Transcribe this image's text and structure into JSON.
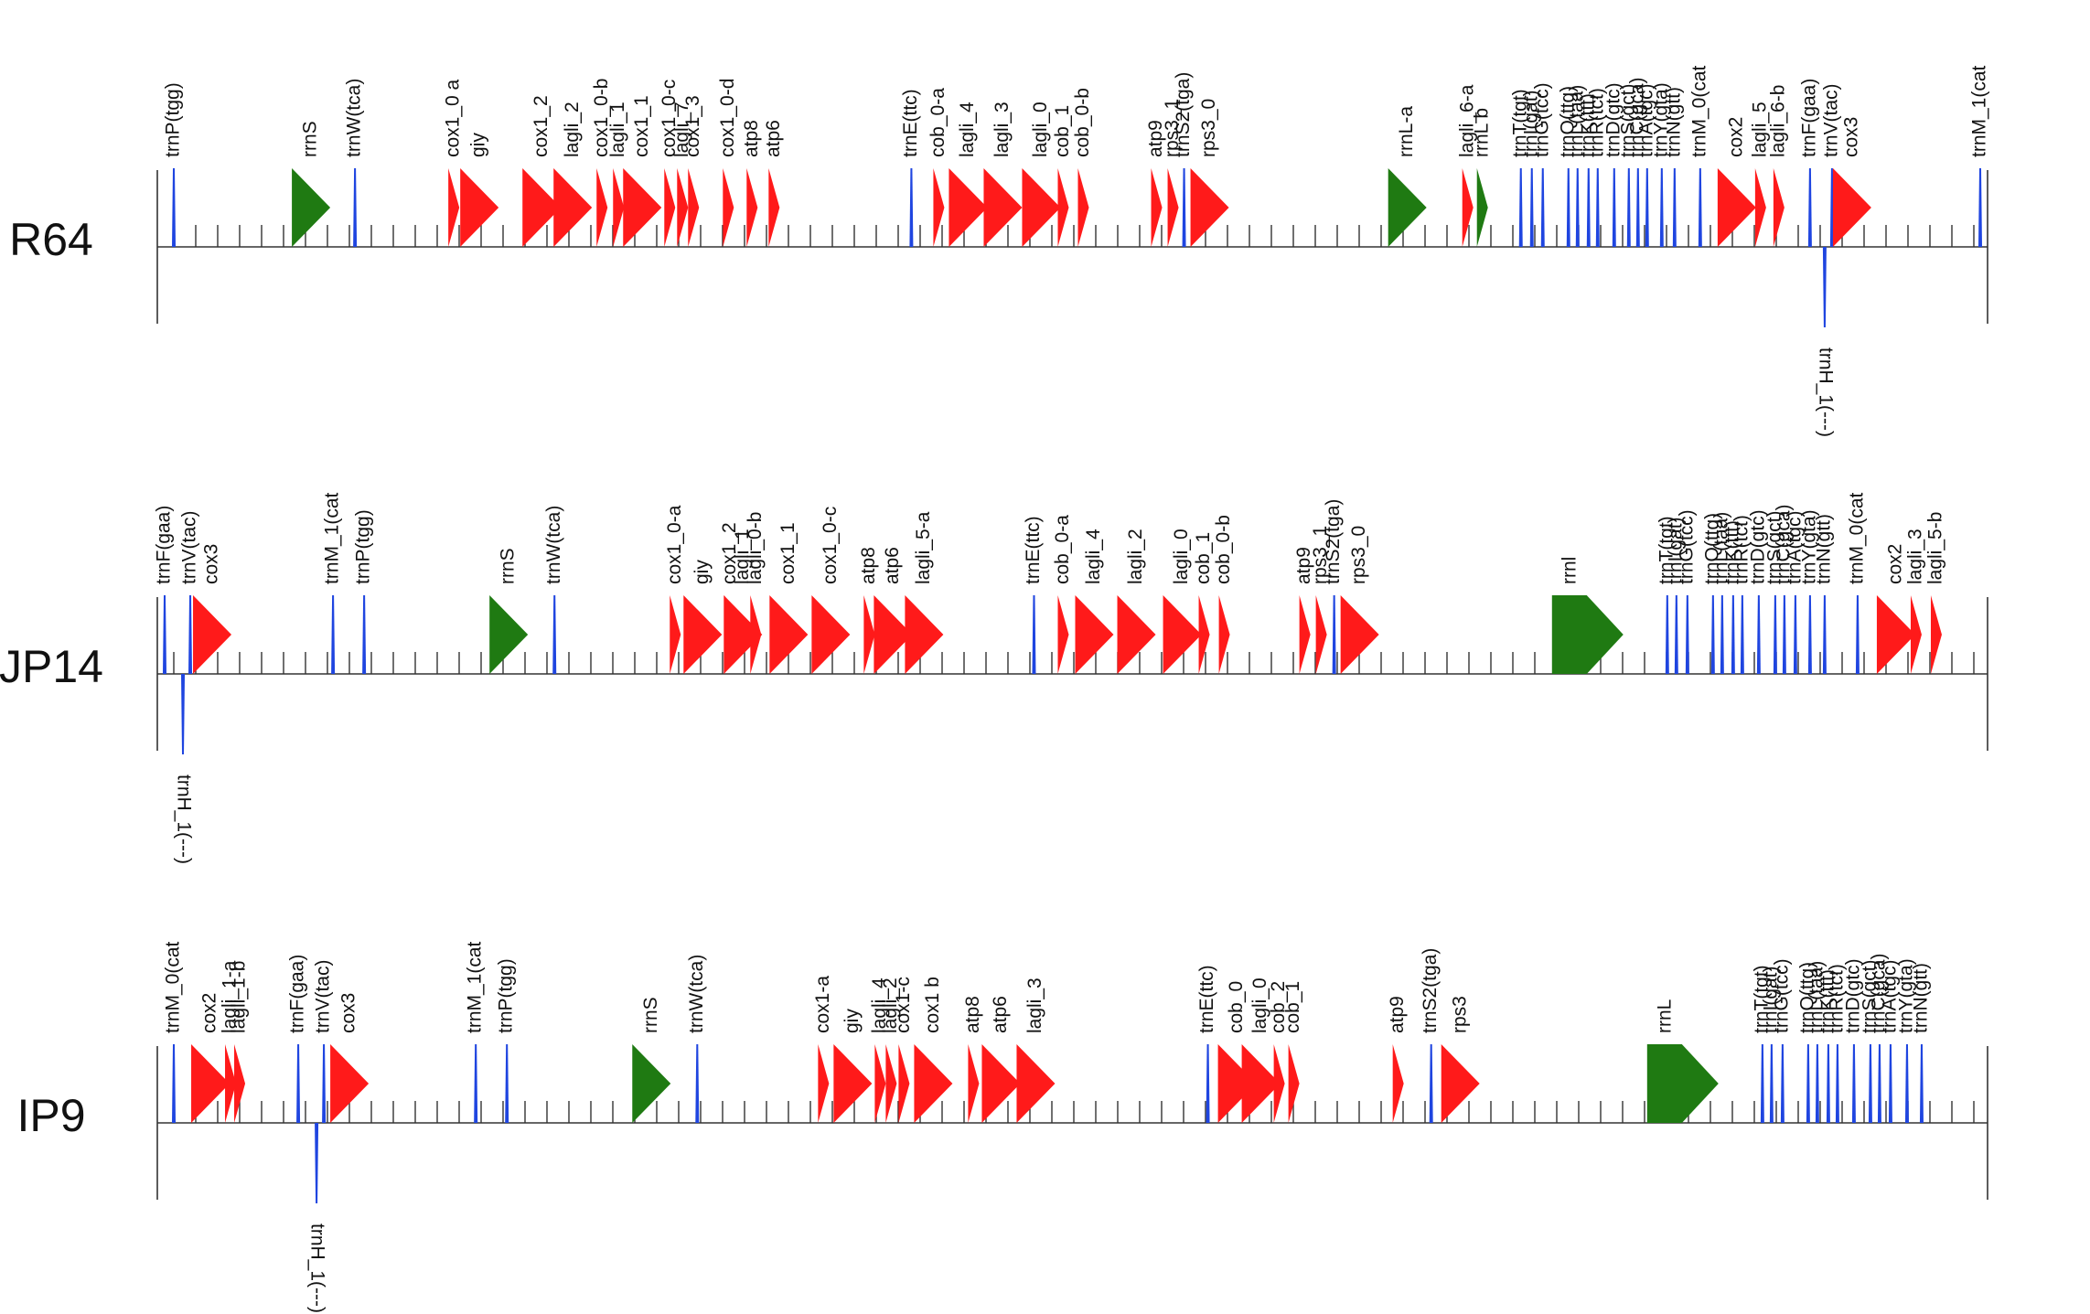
{
  "colors": {
    "protein": "#ff1a1a",
    "rrna": "#1f7a12",
    "trna": "#1f45e0"
  },
  "tracks": [
    {
      "name": "R64",
      "genes": [
        {
          "label": "trnP(tgg)",
          "x": 0.009,
          "type": "trna",
          "dir": "+"
        },
        {
          "label": "rrnS",
          "x": 0.084,
          "type": "rrna",
          "dir": "+"
        },
        {
          "label": "trnW(tca)",
          "x": 0.108,
          "type": "trna",
          "dir": "+"
        },
        {
          "label": "cox1_0 a",
          "x": 0.162,
          "type": "protein",
          "dir": "+",
          "size": "s"
        },
        {
          "label": "giy",
          "x": 0.176,
          "type": "protein",
          "dir": "+"
        },
        {
          "label": "cox1_2",
          "x": 0.21,
          "type": "protein",
          "dir": "+"
        },
        {
          "label": "lagli_2",
          "x": 0.227,
          "type": "protein",
          "dir": "+"
        },
        {
          "label": "cox1_0-b",
          "x": 0.243,
          "type": "protein",
          "dir": "+",
          "size": "s"
        },
        {
          "label": "lagli_1",
          "x": 0.252,
          "type": "protein",
          "dir": "+",
          "size": "s"
        },
        {
          "label": "cox1_1",
          "x": 0.265,
          "type": "protein",
          "dir": "+"
        },
        {
          "label": "cox1_0-c",
          "x": 0.28,
          "type": "protein",
          "dir": "+",
          "size": "s"
        },
        {
          "label": "lagli_7",
          "x": 0.287,
          "type": "protein",
          "dir": "+",
          "size": "s"
        },
        {
          "label": "cox1_3",
          "x": 0.293,
          "type": "protein",
          "dir": "+",
          "size": "s"
        },
        {
          "label": "cox1_0-d",
          "x": 0.312,
          "type": "protein",
          "dir": "+",
          "size": "s"
        },
        {
          "label": "atp8",
          "x": 0.325,
          "type": "protein",
          "dir": "+",
          "size": "s"
        },
        {
          "label": "atp6",
          "x": 0.337,
          "type": "protein",
          "dir": "+",
          "size": "s"
        },
        {
          "label": "trnE(ttc)",
          "x": 0.412,
          "type": "trna",
          "dir": "+"
        },
        {
          "label": "cob_0-a",
          "x": 0.427,
          "type": "protein",
          "dir": "+",
          "size": "s"
        },
        {
          "label": "lagli_4",
          "x": 0.443,
          "type": "protein",
          "dir": "+"
        },
        {
          "label": "lagli_3",
          "x": 0.462,
          "type": "protein",
          "dir": "+"
        },
        {
          "label": "lagli_0",
          "x": 0.483,
          "type": "protein",
          "dir": "+"
        },
        {
          "label": "cob_1",
          "x": 0.495,
          "type": "protein",
          "dir": "+",
          "size": "s"
        },
        {
          "label": "cob_0-b",
          "x": 0.506,
          "type": "protein",
          "dir": "+",
          "size": "s"
        },
        {
          "label": "atp9",
          "x": 0.546,
          "type": "protein",
          "dir": "+",
          "size": "s"
        },
        {
          "label": "rps3_1",
          "x": 0.555,
          "type": "protein",
          "dir": "+",
          "size": "s"
        },
        {
          "label": "trnS2(tga)",
          "x": 0.561,
          "type": "trna",
          "dir": "+"
        },
        {
          "label": "rps3_0",
          "x": 0.575,
          "type": "protein",
          "dir": "+"
        },
        {
          "label": "rrnL-a",
          "x": 0.683,
          "type": "rrna",
          "dir": "+"
        },
        {
          "label": "lagli_6-a",
          "x": 0.716,
          "type": "protein",
          "dir": "+",
          "size": "s"
        },
        {
          "label": "rrnL b",
          "x": 0.724,
          "type": "rrna",
          "dir": "+",
          "size": "s"
        },
        {
          "label": "trnT(tgt)",
          "x": 0.745,
          "type": "trna",
          "dir": "+"
        },
        {
          "label": "trnI(gat)",
          "x": 0.751,
          "type": "trna",
          "dir": "+"
        },
        {
          "label": "trnG(tcc)",
          "x": 0.757,
          "type": "trna",
          "dir": "+"
        },
        {
          "label": "trnQ(ttg)",
          "x": 0.771,
          "type": "trna",
          "dir": "+"
        },
        {
          "label": "trnL(taa)",
          "x": 0.776,
          "type": "trna",
          "dir": "+"
        },
        {
          "label": "trnK(ttt)",
          "x": 0.782,
          "type": "trna",
          "dir": "+"
        },
        {
          "label": "trnR(tct)",
          "x": 0.787,
          "type": "trna",
          "dir": "+"
        },
        {
          "label": "trnD(gtc)",
          "x": 0.796,
          "type": "trna",
          "dir": "+"
        },
        {
          "label": "trnS(gct)",
          "x": 0.804,
          "type": "trna",
          "dir": "+"
        },
        {
          "label": "trnC(gca)",
          "x": 0.809,
          "type": "trna",
          "dir": "+"
        },
        {
          "label": "trnA(tgc)",
          "x": 0.814,
          "type": "trna",
          "dir": "+"
        },
        {
          "label": "trnY(gta)",
          "x": 0.822,
          "type": "trna",
          "dir": "+"
        },
        {
          "label": "trnN(gtt)",
          "x": 0.829,
          "type": "trna",
          "dir": "+"
        },
        {
          "label": "trnM_0(cat",
          "x": 0.843,
          "type": "trna",
          "dir": "+"
        },
        {
          "label": "cox2",
          "x": 0.863,
          "type": "protein",
          "dir": "+"
        },
        {
          "label": "lagli_5",
          "x": 0.876,
          "type": "protein",
          "dir": "+",
          "size": "s"
        },
        {
          "label": "lagli_6-b",
          "x": 0.886,
          "type": "protein",
          "dir": "+",
          "size": "s"
        },
        {
          "label": "trnF(gaa)",
          "x": 0.903,
          "type": "trna",
          "dir": "+"
        },
        {
          "label": "trnV(tac)",
          "x": 0.915,
          "type": "trna",
          "dir": "+"
        },
        {
          "label": "cox3",
          "x": 0.926,
          "type": "protein",
          "dir": "+"
        },
        {
          "label": "trnM_1(cat",
          "x": 0.996,
          "type": "trna",
          "dir": "+"
        },
        {
          "label": "trnH_1(---)",
          "x": 0.911,
          "type": "trna",
          "dir": "-"
        }
      ]
    },
    {
      "name": "JP14",
      "genes": [
        {
          "label": "trnF(gaa)",
          "x": 0.004,
          "type": "trna",
          "dir": "+"
        },
        {
          "label": "trnV(tac)",
          "x": 0.018,
          "type": "trna",
          "dir": "+"
        },
        {
          "label": "cox3",
          "x": 0.03,
          "type": "protein",
          "dir": "+"
        },
        {
          "label": "trnM_1(cat",
          "x": 0.096,
          "type": "trna",
          "dir": "+"
        },
        {
          "label": "trnP(tgg)",
          "x": 0.113,
          "type": "trna",
          "dir": "+"
        },
        {
          "label": "rrnS",
          "x": 0.192,
          "type": "rrna",
          "dir": "+"
        },
        {
          "label": "trnW(tca)",
          "x": 0.217,
          "type": "trna",
          "dir": "+"
        },
        {
          "label": "cox1_0-a",
          "x": 0.283,
          "type": "protein",
          "dir": "+",
          "size": "s"
        },
        {
          "label": "giy",
          "x": 0.298,
          "type": "protein",
          "dir": "+"
        },
        {
          "label": "cox1_2",
          "x": 0.313,
          "type": "protein",
          "dir": "+",
          "size": "s"
        },
        {
          "label": "lagli_1",
          "x": 0.32,
          "type": "protein",
          "dir": "+"
        },
        {
          "label": "lagli_0-b",
          "x": 0.327,
          "type": "protein",
          "dir": "+",
          "size": "s"
        },
        {
          "label": "cox1_1",
          "x": 0.345,
          "type": "protein",
          "dir": "+"
        },
        {
          "label": "cox1_0-c",
          "x": 0.368,
          "type": "protein",
          "dir": "+"
        },
        {
          "label": "atp8",
          "x": 0.389,
          "type": "protein",
          "dir": "+",
          "size": "s"
        },
        {
          "label": "atp6",
          "x": 0.402,
          "type": "protein",
          "dir": "+"
        },
        {
          "label": "lagli_5-a",
          "x": 0.419,
          "type": "protein",
          "dir": "+"
        },
        {
          "label": "trnE(ttc)",
          "x": 0.479,
          "type": "trna",
          "dir": "+"
        },
        {
          "label": "cob_0-a",
          "x": 0.495,
          "type": "protein",
          "dir": "+",
          "size": "s"
        },
        {
          "label": "lagli_4",
          "x": 0.512,
          "type": "protein",
          "dir": "+"
        },
        {
          "label": "lagli_2",
          "x": 0.535,
          "type": "protein",
          "dir": "+"
        },
        {
          "label": "lagli_0",
          "x": 0.56,
          "type": "protein",
          "dir": "+"
        },
        {
          "label": "cob_1",
          "x": 0.572,
          "type": "protein",
          "dir": "+",
          "size": "s"
        },
        {
          "label": "cob_0-b",
          "x": 0.583,
          "type": "protein",
          "dir": "+",
          "size": "s"
        },
        {
          "label": "atp9",
          "x": 0.627,
          "type": "protein",
          "dir": "+",
          "size": "s"
        },
        {
          "label": "rps3_1",
          "x": 0.636,
          "type": "protein",
          "dir": "+",
          "size": "s"
        },
        {
          "label": "trnS2(tga)",
          "x": 0.643,
          "type": "trna",
          "dir": "+"
        },
        {
          "label": "rps3_0",
          "x": 0.657,
          "type": "protein",
          "dir": "+"
        },
        {
          "label": "rrnl",
          "x": 0.772,
          "type": "rrna",
          "dir": "+",
          "size": "l"
        },
        {
          "label": "trnT(tgt)",
          "x": 0.825,
          "type": "trna",
          "dir": "+"
        },
        {
          "label": "trnI(gat)",
          "x": 0.83,
          "type": "trna",
          "dir": "+"
        },
        {
          "label": "trnG(tcc)",
          "x": 0.836,
          "type": "trna",
          "dir": "+"
        },
        {
          "label": "trnQ(ttg)",
          "x": 0.85,
          "type": "trna",
          "dir": "+"
        },
        {
          "label": "trnL(taa)",
          "x": 0.855,
          "type": "trna",
          "dir": "+"
        },
        {
          "label": "trnK(ttt)",
          "x": 0.861,
          "type": "trna",
          "dir": "+"
        },
        {
          "label": "trnR(tct)",
          "x": 0.866,
          "type": "trna",
          "dir": "+"
        },
        {
          "label": "trnD(gtc)",
          "x": 0.875,
          "type": "trna",
          "dir": "+"
        },
        {
          "label": "trnS(gct)",
          "x": 0.884,
          "type": "trna",
          "dir": "+"
        },
        {
          "label": "trnC(gca)",
          "x": 0.889,
          "type": "trna",
          "dir": "+"
        },
        {
          "label": "trnA(tgc)",
          "x": 0.895,
          "type": "trna",
          "dir": "+"
        },
        {
          "label": "trnY(gta)",
          "x": 0.903,
          "type": "trna",
          "dir": "+"
        },
        {
          "label": "trnN(gtt)",
          "x": 0.911,
          "type": "trna",
          "dir": "+"
        },
        {
          "label": "trnM_0(cat",
          "x": 0.929,
          "type": "trna",
          "dir": "+"
        },
        {
          "label": "cox2",
          "x": 0.95,
          "type": "protein",
          "dir": "+"
        },
        {
          "label": "lagli_3",
          "x": 0.961,
          "type": "protein",
          "dir": "+",
          "size": "s"
        },
        {
          "label": "lagli_5-b",
          "x": 0.972,
          "type": "protein",
          "dir": "+",
          "size": "s"
        },
        {
          "label": "trnH_1(---)",
          "x": 0.014,
          "type": "trna",
          "dir": "-"
        }
      ]
    },
    {
      "name": "IP9",
      "genes": [
        {
          "label": "trnM_0(cat",
          "x": 0.009,
          "type": "trna",
          "dir": "+"
        },
        {
          "label": "cox2",
          "x": 0.029,
          "type": "protein",
          "dir": "+"
        },
        {
          "label": "lagli_1-a",
          "x": 0.04,
          "type": "protein",
          "dir": "+",
          "size": "s"
        },
        {
          "label": "lagli_1-b",
          "x": 0.045,
          "type": "protein",
          "dir": "+",
          "size": "s"
        },
        {
          "label": "trnF(gaa)",
          "x": 0.077,
          "type": "trna",
          "dir": "+"
        },
        {
          "label": "trnV(tac)",
          "x": 0.091,
          "type": "trna",
          "dir": "+"
        },
        {
          "label": "cox3",
          "x": 0.105,
          "type": "protein",
          "dir": "+"
        },
        {
          "label": "trnM_1(cat",
          "x": 0.174,
          "type": "trna",
          "dir": "+"
        },
        {
          "label": "trnP(tgg)",
          "x": 0.191,
          "type": "trna",
          "dir": "+"
        },
        {
          "label": "rrnS",
          "x": 0.27,
          "type": "rrna",
          "dir": "+"
        },
        {
          "label": "trnW(tca)",
          "x": 0.295,
          "type": "trna",
          "dir": "+"
        },
        {
          "label": "cox1-a",
          "x": 0.364,
          "type": "protein",
          "dir": "+",
          "size": "s"
        },
        {
          "label": "giy",
          "x": 0.38,
          "type": "protein",
          "dir": "+"
        },
        {
          "label": "lagli_4",
          "x": 0.395,
          "type": "protein",
          "dir": "+",
          "size": "s"
        },
        {
          "label": "lagli_2",
          "x": 0.401,
          "type": "protein",
          "dir": "+",
          "size": "s"
        },
        {
          "label": "cox1-c",
          "x": 0.408,
          "type": "protein",
          "dir": "+",
          "size": "s"
        },
        {
          "label": "cox1 b",
          "x": 0.424,
          "type": "protein",
          "dir": "+"
        },
        {
          "label": "atp8",
          "x": 0.446,
          "type": "protein",
          "dir": "+",
          "size": "s"
        },
        {
          "label": "atp6",
          "x": 0.461,
          "type": "protein",
          "dir": "+"
        },
        {
          "label": "lagli_3",
          "x": 0.48,
          "type": "protein",
          "dir": "+"
        },
        {
          "label": "trnE(ttc)",
          "x": 0.574,
          "type": "trna",
          "dir": "+"
        },
        {
          "label": "cob_0",
          "x": 0.59,
          "type": "protein",
          "dir": "+"
        },
        {
          "label": "lagli_0",
          "x": 0.603,
          "type": "protein",
          "dir": "+"
        },
        {
          "label": "cob_2",
          "x": 0.613,
          "type": "protein",
          "dir": "+",
          "size": "s"
        },
        {
          "label": "cob_1",
          "x": 0.621,
          "type": "protein",
          "dir": "+",
          "size": "s"
        },
        {
          "label": "atp9",
          "x": 0.678,
          "type": "protein",
          "dir": "+",
          "size": "s"
        },
        {
          "label": "trnS2(tga)",
          "x": 0.696,
          "type": "trna",
          "dir": "+"
        },
        {
          "label": "rps3",
          "x": 0.712,
          "type": "protein",
          "dir": "+"
        },
        {
          "label": "rrnL",
          "x": 0.824,
          "type": "rrna",
          "dir": "+",
          "size": "l"
        },
        {
          "label": "trnT(tgt)",
          "x": 0.877,
          "type": "trna",
          "dir": "+"
        },
        {
          "label": "trnI(gat)",
          "x": 0.882,
          "type": "trna",
          "dir": "+"
        },
        {
          "label": "trnG(tcc)",
          "x": 0.888,
          "type": "trna",
          "dir": "+"
        },
        {
          "label": "trnQ(ttg)",
          "x": 0.902,
          "type": "trna",
          "dir": "+"
        },
        {
          "label": "trnL(taa)",
          "x": 0.907,
          "type": "trna",
          "dir": "+"
        },
        {
          "label": "trnK(ttt)",
          "x": 0.913,
          "type": "trna",
          "dir": "+"
        },
        {
          "label": "trnR(tct)",
          "x": 0.918,
          "type": "trna",
          "dir": "+"
        },
        {
          "label": "trnD(gtc)",
          "x": 0.927,
          "type": "trna",
          "dir": "+"
        },
        {
          "label": "trnS(gct)",
          "x": 0.936,
          "type": "trna",
          "dir": "+"
        },
        {
          "label": "trnC(gca)",
          "x": 0.941,
          "type": "trna",
          "dir": "+"
        },
        {
          "label": "trnA(tgc)",
          "x": 0.947,
          "type": "trna",
          "dir": "+"
        },
        {
          "label": "trnY(gta)",
          "x": 0.956,
          "type": "trna",
          "dir": "+"
        },
        {
          "label": "trnN(gtt)",
          "x": 0.964,
          "type": "trna",
          "dir": "+"
        },
        {
          "label": "trnH_1(---)",
          "x": 0.087,
          "type": "trna",
          "dir": "-"
        }
      ]
    }
  ]
}
